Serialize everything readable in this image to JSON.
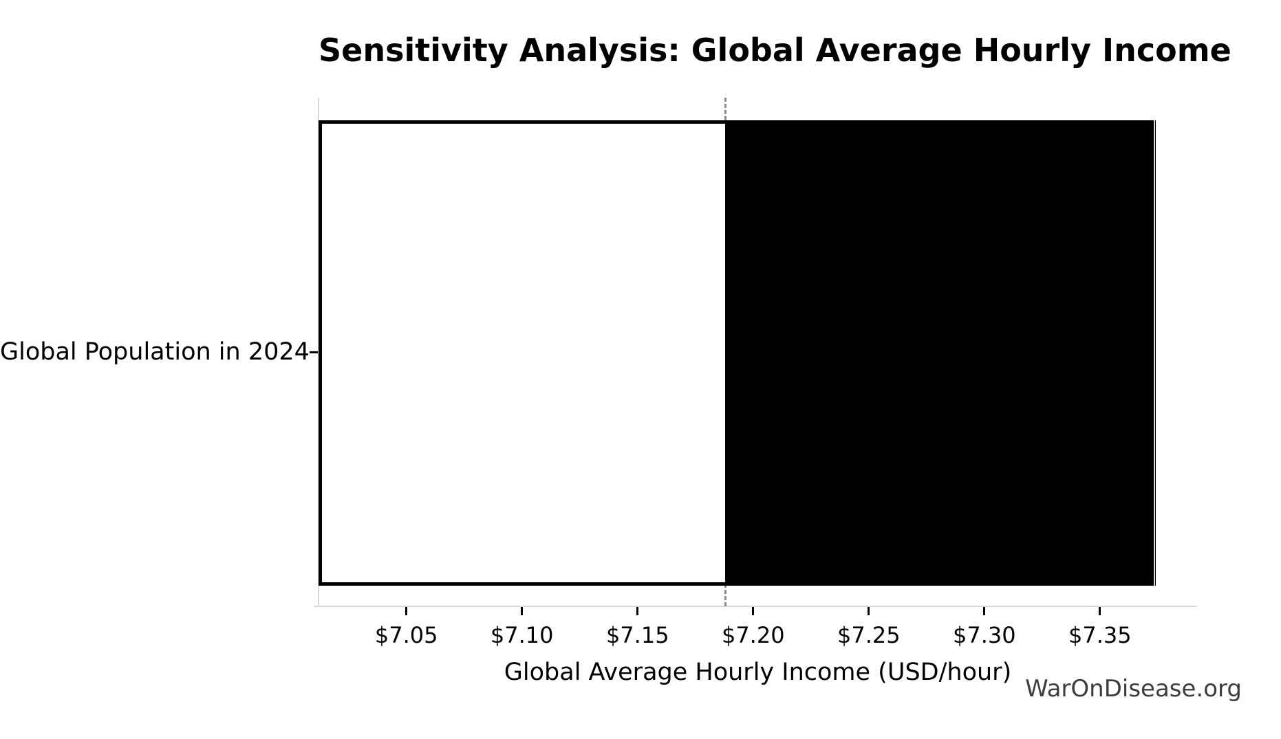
{
  "page": {
    "background": "#ffffff",
    "watermark": "WarOnDisease.org"
  },
  "chart_data": {
    "type": "bar",
    "orientation": "horizontal",
    "title": "Sensitivity Analysis: Global Average Hourly Income",
    "xlabel": "Global Average Hourly Income (USD/hour)",
    "ylabel": "",
    "categories": [
      "Global Population in 2024"
    ],
    "bar": {
      "low": 7.012,
      "base": 7.188,
      "high": 7.374
    },
    "series": [
      {
        "name": "below-baseline-segment",
        "from": 7.012,
        "to": 7.188,
        "fill": "#ffffff",
        "edge": "#000000"
      },
      {
        "name": "above-baseline-segment",
        "from": 7.188,
        "to": 7.374,
        "fill": "#000000",
        "edge": "#dcdcdc"
      }
    ],
    "baseline_value": 7.188,
    "xlim": [
      7.012,
      7.392
    ],
    "xticks": [
      7.05,
      7.1,
      7.15,
      7.2,
      7.25,
      7.3,
      7.35
    ],
    "xtick_labels": [
      "$7.05",
      "$7.10",
      "$7.15",
      "$7.20",
      "$7.25",
      "$7.30",
      "$7.35"
    ],
    "grid": false,
    "legend": null,
    "colors": {
      "bar_low_fill": "#ffffff",
      "bar_low_edge": "#000000",
      "bar_high_fill": "#000000",
      "baseline_dash": "#8a8a8a",
      "spine": "#d9d9d9",
      "tick": "#000000",
      "text": "#000000",
      "watermark_text": "#3d3d3d"
    }
  }
}
